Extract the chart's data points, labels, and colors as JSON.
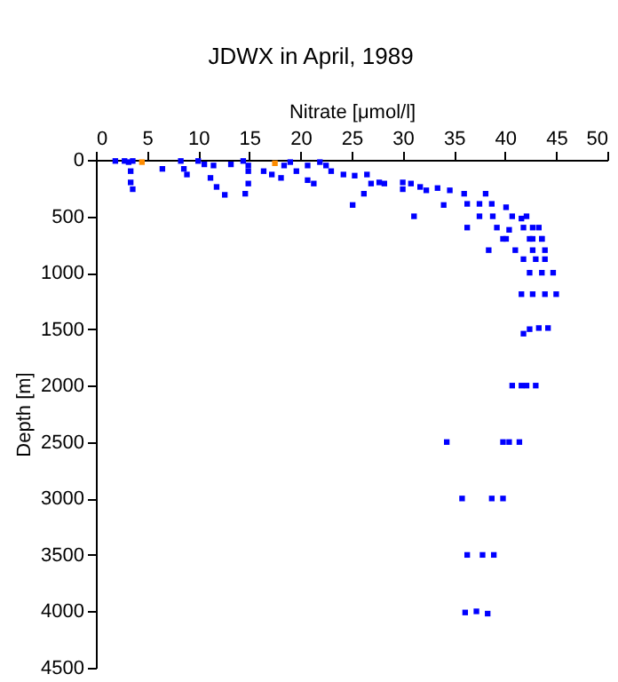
{
  "chart_data": {
    "type": "scatter",
    "title": "JDWX in April, 1989",
    "xlabel": "Nitrate [μmol/l]",
    "ylabel": "Depth [m]",
    "xlim": [
      0,
      50
    ],
    "xticks": [
      0,
      5,
      10,
      15,
      20,
      25,
      30,
      35,
      40,
      45,
      50
    ],
    "ylim": [
      4500,
      0
    ],
    "yticks": [
      0,
      500,
      1000,
      1500,
      2000,
      2500,
      3000,
      3500,
      4000,
      4500
    ],
    "grid": false,
    "marker": "square",
    "series": [
      {
        "color": "#0000ff",
        "x": [
          1.9,
          2.8,
          3.2,
          3.4,
          3.4,
          3.6,
          3.6,
          6.5,
          8.3,
          8.6,
          8.9,
          10,
          10.6,
          11.5,
          11.2,
          11.8,
          12.6,
          13.2,
          14.4,
          14.9,
          14.9,
          14.9,
          14.6,
          16.4,
          17.2,
          18.4,
          18.1,
          19,
          19.6,
          20.7,
          20.7,
          21.9,
          22.5,
          21.3,
          23,
          24.2,
          25.3,
          26.5,
          26.2,
          25.1,
          26.9,
          27.7,
          28.2,
          30,
          30.8,
          30,
          31.1,
          31.7,
          32.3,
          33.4,
          34.6,
          34,
          36,
          36.3,
          37.5,
          38.1,
          38.7,
          37.5,
          38.8,
          40.1,
          40.7,
          41.6,
          42.1,
          36.3,
          39.2,
          40.4,
          41.8,
          42.7,
          43.3,
          40.1,
          42.7,
          43.6,
          39.8,
          42.4,
          43.6,
          38.4,
          41,
          42.7,
          43.9,
          41.8,
          43,
          43.9,
          42.4,
          43.6,
          44.7,
          41.6,
          42.7,
          43.9,
          45,
          41.8,
          42.4,
          43.3,
          44.2,
          40.7,
          41.6,
          42.1,
          43,
          34.3,
          39.8,
          40.4,
          41.4,
          35.8,
          38.7,
          39.8,
          36.3,
          37.8,
          38.9,
          36.1,
          37.2,
          38.3
        ],
        "values": [
          10,
          10,
          20,
          100,
          200,
          260,
          10,
          80,
          10,
          80,
          130,
          10,
          40,
          50,
          160,
          240,
          310,
          40,
          10,
          50,
          100,
          210,
          300,
          100,
          130,
          50,
          160,
          20,
          100,
          50,
          180,
          20,
          50,
          210,
          100,
          130,
          140,
          130,
          300,
          400,
          210,
          200,
          210,
          200,
          210,
          260,
          500,
          240,
          270,
          250,
          270,
          400,
          300,
          390,
          390,
          300,
          390,
          500,
          500,
          420,
          500,
          520,
          500,
          600,
          600,
          620,
          600,
          600,
          600,
          700,
          700,
          700,
          700,
          700,
          700,
          800,
          800,
          800,
          800,
          880,
          880,
          880,
          1000,
          1000,
          1000,
          1190,
          1190,
          1190,
          1190,
          1540,
          1500,
          1490,
          1490,
          2000,
          2000,
          2000,
          2000,
          2500,
          2500,
          2500,
          2500,
          3000,
          3000,
          3000,
          3500,
          3500,
          3500,
          4010,
          4000,
          4020
        ]
      },
      {
        "color": "#ff8c00",
        "x": [
          4.5,
          17.5
        ],
        "values": [
          20,
          30
        ]
      }
    ]
  }
}
